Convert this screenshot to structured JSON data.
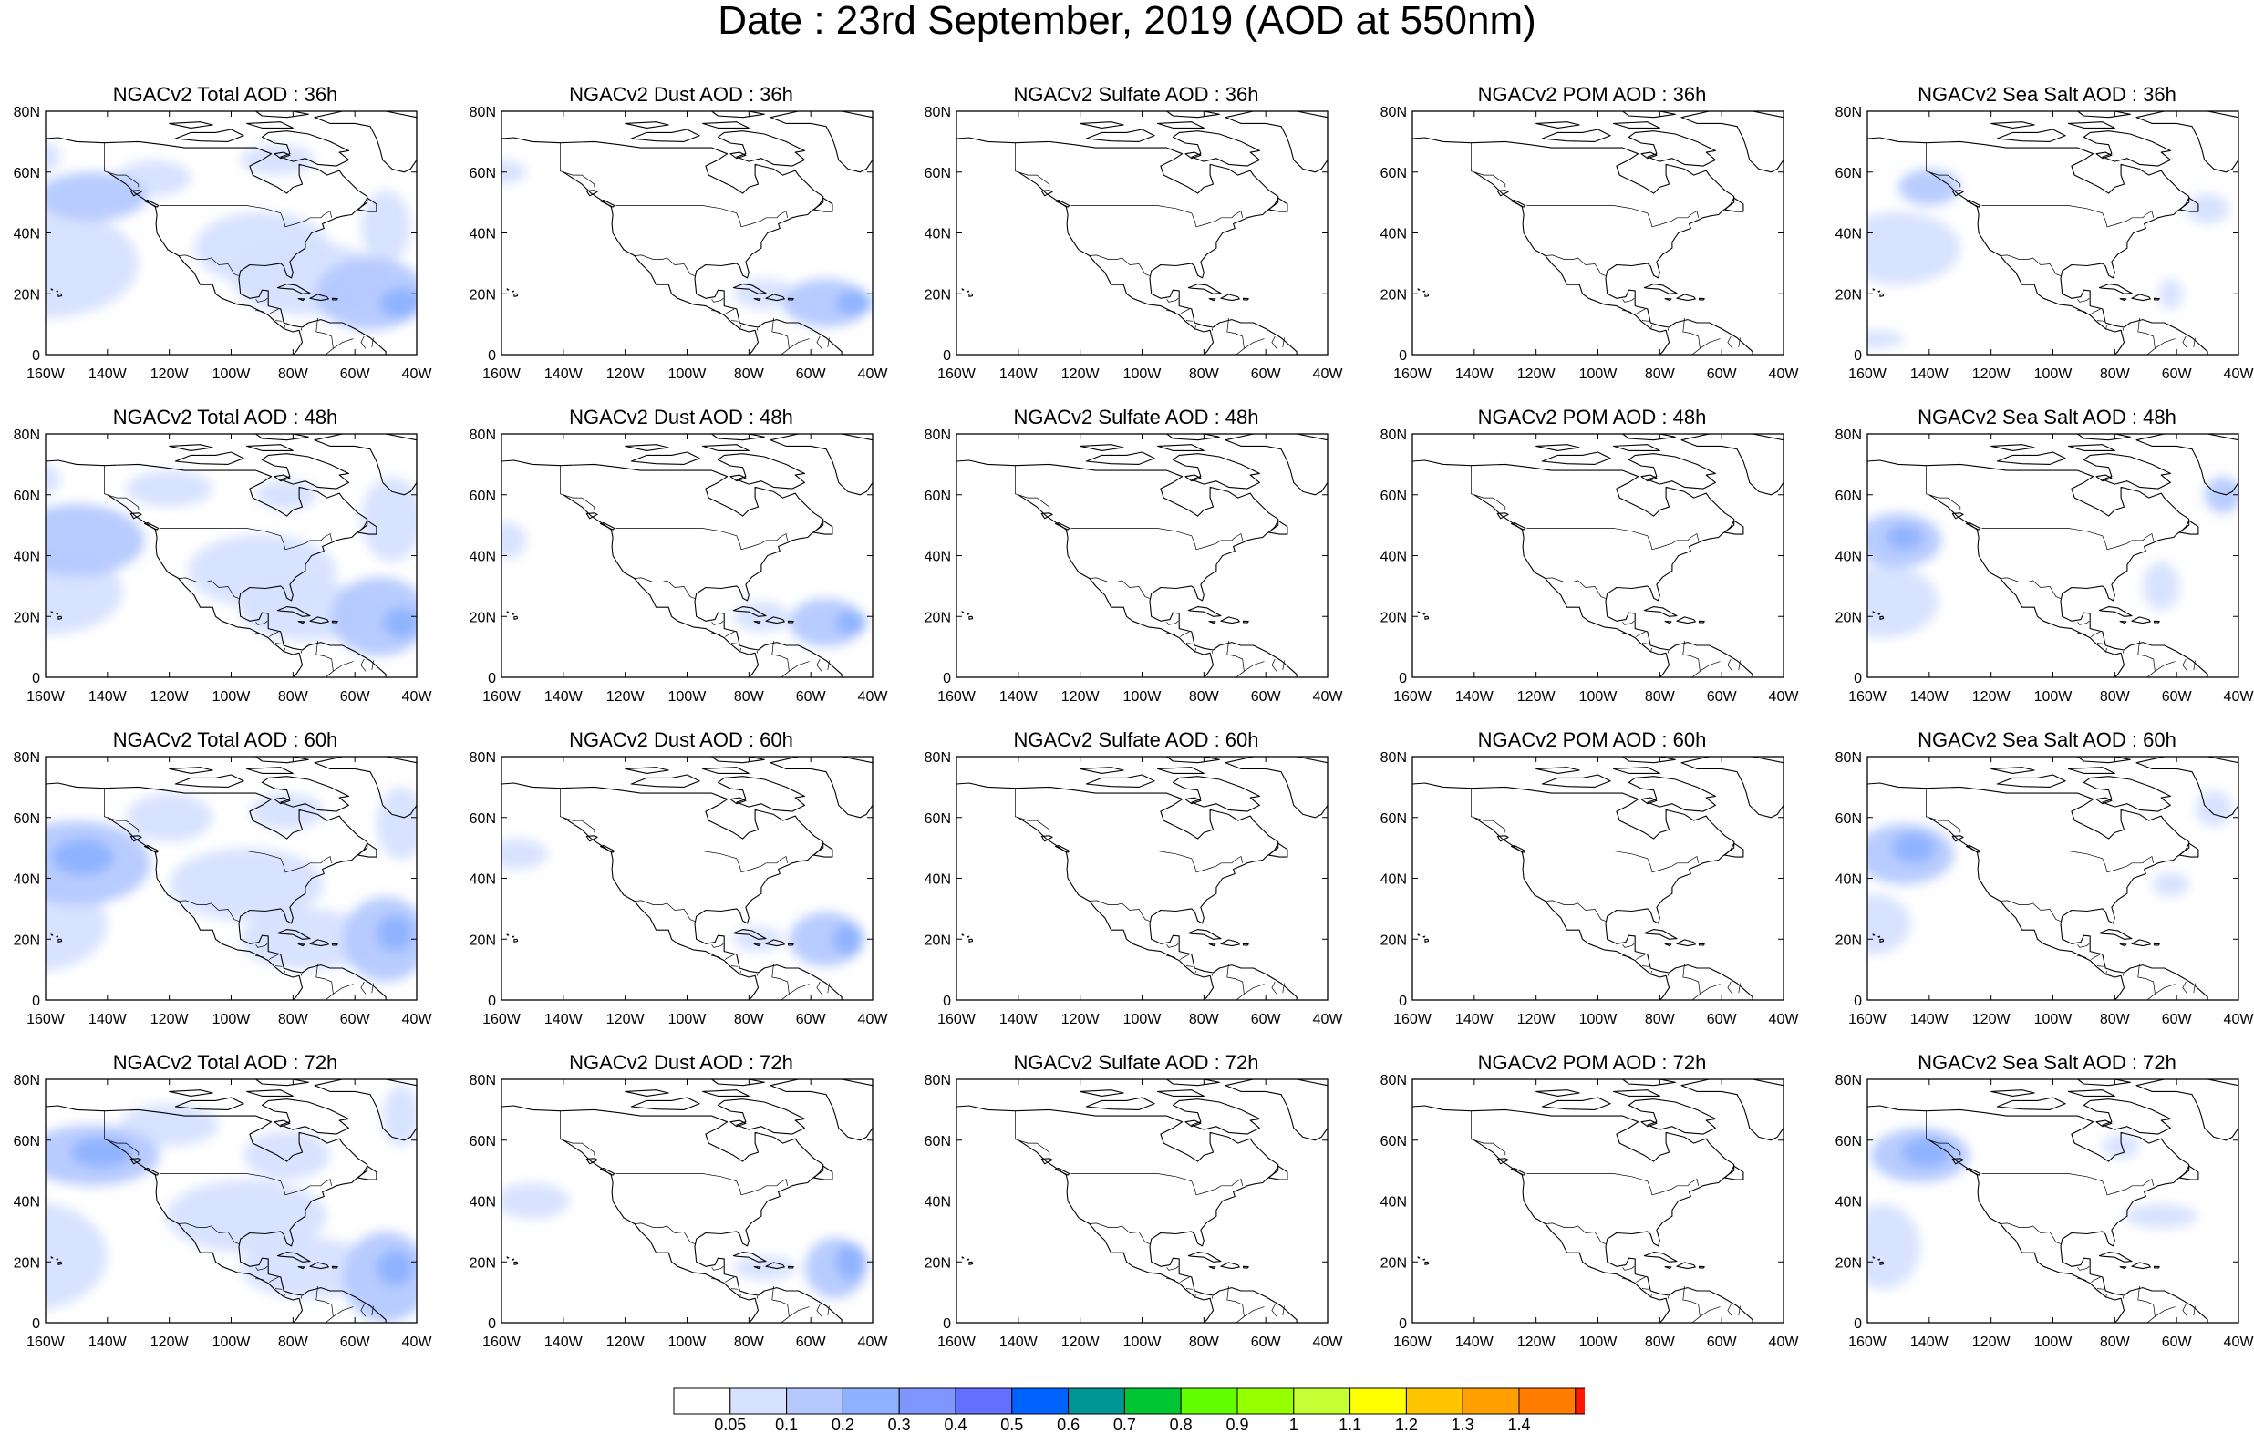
{
  "figure": {
    "title": "Date : 23rd September, 2019 (AOD at 550nm)"
  },
  "panel_titles": [
    [
      "NGACv2 Total AOD : 36h",
      "NGACv2 Dust AOD : 36h",
      "NGACv2 Sulfate AOD : 36h",
      "NGACv2 POM AOD : 36h",
      "NGACv2 Sea Salt AOD : 36h"
    ],
    [
      "NGACv2 Total AOD : 48h",
      "NGACv2 Dust AOD : 48h",
      "NGACv2 Sulfate AOD : 48h",
      "NGACv2 POM AOD : 48h",
      "NGACv2 Sea Salt AOD : 48h"
    ],
    [
      "NGACv2 Total AOD : 60h",
      "NGACv2 Dust AOD : 60h",
      "NGACv2 Sulfate AOD : 60h",
      "NGACv2 POM AOD : 60h",
      "NGACv2 Sea Salt AOD : 60h"
    ],
    [
      "NGACv2 Total AOD : 72h",
      "NGACv2 Dust AOD : 72h",
      "NGACv2 Sulfate AOD : 72h",
      "NGACv2 POM AOD : 72h",
      "NGACv2 Sea Salt  AOD : 72h"
    ]
  ],
  "axes": {
    "lon_range": [
      -160,
      -40
    ],
    "lat_range": [
      0,
      80
    ],
    "x_ticks": [
      -160,
      -140,
      -120,
      -100,
      -80,
      -60,
      -40
    ],
    "x_tick_labels": [
      "160W",
      "140W",
      "120W",
      "100W",
      "80W",
      "60W",
      "40W"
    ],
    "y_ticks": [
      0,
      20,
      40,
      60,
      80
    ],
    "y_tick_labels": [
      "0",
      "20N",
      "40N",
      "60N",
      "80N"
    ]
  },
  "colorbar": {
    "labels": [
      "0.05",
      "0.1",
      "0.2",
      "0.3",
      "0.4",
      "0.5",
      "0.6",
      "0.7",
      "0.8",
      "0.9",
      "1",
      "1.1",
      "1.2",
      "1.3",
      "1.4"
    ],
    "colors": [
      "#ffffff",
      "#d6e2ff",
      "#b5c9ff",
      "#8eb2ff",
      "#7f96ff",
      "#6370ff",
      "#0063ff",
      "#009696",
      "#00c633",
      "#63ff00",
      "#96ff00",
      "#c6ff33",
      "#ffff00",
      "#ffc600",
      "#ffa000",
      "#ff7c00",
      "#ff1900"
    ]
  },
  "colors": {
    "coast": "#000000",
    "aod_low": "#d6e2ff",
    "aod_mid": "#b5c9ff",
    "aod_high": "#8eb2ff",
    "aod_peak": "#7f96ff"
  },
  "plumes": {
    "total": [
      [
        [
          -175,
          65,
          20,
          8,
          0.1
        ],
        [
          -160,
          30,
          30,
          18,
          0.1
        ],
        [
          -145,
          52,
          18,
          8,
          0.2
        ],
        [
          -125,
          58,
          12,
          6,
          0.1
        ],
        [
          -90,
          35,
          22,
          12,
          0.1
        ],
        [
          -75,
          25,
          25,
          12,
          0.1
        ],
        [
          -55,
          20,
          18,
          12,
          0.2
        ],
        [
          -45,
          17,
          7,
          5,
          0.3
        ],
        [
          -85,
          64,
          12,
          5,
          0.1
        ],
        [
          -50,
          42,
          8,
          12,
          0.1
        ]
      ],
      [
        [
          -175,
          65,
          20,
          8,
          0.1
        ],
        [
          -150,
          45,
          22,
          12,
          0.2
        ],
        [
          -160,
          28,
          25,
          14,
          0.1
        ],
        [
          -120,
          62,
          14,
          6,
          0.1
        ],
        [
          -90,
          35,
          24,
          12,
          0.1
        ],
        [
          -75,
          22,
          22,
          10,
          0.1
        ],
        [
          -52,
          20,
          16,
          13,
          0.2
        ],
        [
          -45,
          18,
          6,
          5,
          0.3
        ],
        [
          -82,
          60,
          10,
          5,
          0.1
        ],
        [
          -48,
          52,
          10,
          14,
          0.1
        ]
      ],
      [
        [
          -150,
          45,
          24,
          14,
          0.2
        ],
        [
          -148,
          47,
          10,
          6,
          0.3
        ],
        [
          -165,
          25,
          25,
          16,
          0.1
        ],
        [
          -120,
          60,
          14,
          8,
          0.1
        ],
        [
          -95,
          38,
          25,
          12,
          0.1
        ],
        [
          -75,
          20,
          22,
          10,
          0.1
        ],
        [
          -50,
          20,
          14,
          14,
          0.2
        ],
        [
          -47,
          22,
          6,
          6,
          0.3
        ],
        [
          -82,
          62,
          12,
          6,
          0.1
        ],
        [
          -45,
          58,
          8,
          12,
          0.1
        ]
      ],
      [
        [
          -145,
          55,
          22,
          10,
          0.2
        ],
        [
          -142,
          56,
          10,
          5,
          0.3
        ],
        [
          -165,
          22,
          25,
          18,
          0.1
        ],
        [
          -120,
          65,
          16,
          7,
          0.1
        ],
        [
          -95,
          35,
          26,
          12,
          0.1
        ],
        [
          -75,
          18,
          22,
          10,
          0.1
        ],
        [
          -50,
          15,
          14,
          15,
          0.2
        ],
        [
          -47,
          18,
          6,
          6,
          0.3
        ],
        [
          -82,
          55,
          14,
          8,
          0.1
        ],
        [
          -45,
          68,
          6,
          10,
          0.1
        ]
      ]
    ],
    "dust": [
      [
        [
          -160,
          60,
          8,
          4,
          0.1
        ],
        [
          -55,
          17,
          14,
          8,
          0.2
        ],
        [
          -46,
          17,
          6,
          4,
          0.3
        ],
        [
          -75,
          20,
          10,
          5,
          0.1
        ]
      ],
      [
        [
          -158,
          45,
          6,
          6,
          0.1
        ],
        [
          -55,
          18,
          12,
          8,
          0.2
        ],
        [
          -47,
          18,
          5,
          4,
          0.3
        ],
        [
          -76,
          20,
          9,
          5,
          0.1
        ]
      ],
      [
        [
          -155,
          48,
          10,
          5,
          0.1
        ],
        [
          -55,
          20,
          12,
          9,
          0.2
        ],
        [
          -48,
          20,
          5,
          5,
          0.3
        ],
        [
          -77,
          20,
          8,
          4,
          0.1
        ]
      ],
      [
        [
          -150,
          40,
          12,
          6,
          0.1
        ],
        [
          -52,
          18,
          10,
          10,
          0.2
        ],
        [
          -47,
          20,
          5,
          6,
          0.3
        ],
        [
          -75,
          18,
          10,
          4,
          0.1
        ]
      ]
    ],
    "sulfate": [
      [],
      [],
      [],
      []
    ],
    "pom": [
      [],
      [],
      [],
      []
    ],
    "seasalt": [
      [
        [
          -140,
          55,
          10,
          6,
          0.2
        ],
        [
          -150,
          35,
          20,
          12,
          0.1
        ],
        [
          -158,
          5,
          10,
          3,
          0.1
        ],
        [
          -50,
          48,
          7,
          5,
          0.1
        ],
        [
          -62,
          20,
          4,
          5,
          0.1
        ]
      ],
      [
        [
          -150,
          45,
          14,
          9,
          0.2
        ],
        [
          -148,
          46,
          6,
          4,
          0.3
        ],
        [
          -155,
          25,
          18,
          12,
          0.1
        ],
        [
          -45,
          60,
          6,
          6,
          0.2
        ],
        [
          -65,
          30,
          6,
          8,
          0.1
        ]
      ],
      [
        [
          -148,
          48,
          16,
          10,
          0.2
        ],
        [
          -145,
          50,
          7,
          5,
          0.3
        ],
        [
          -158,
          25,
          12,
          10,
          0.1
        ],
        [
          -48,
          63,
          6,
          6,
          0.1
        ],
        [
          -62,
          38,
          6,
          4,
          0.1
        ]
      ],
      [
        [
          -143,
          55,
          16,
          9,
          0.2
        ],
        [
          -141,
          56,
          8,
          5,
          0.3
        ],
        [
          -155,
          25,
          12,
          14,
          0.1
        ],
        [
          -78,
          58,
          6,
          4,
          0.1
        ],
        [
          -65,
          35,
          12,
          4,
          0.1
        ]
      ]
    ]
  }
}
